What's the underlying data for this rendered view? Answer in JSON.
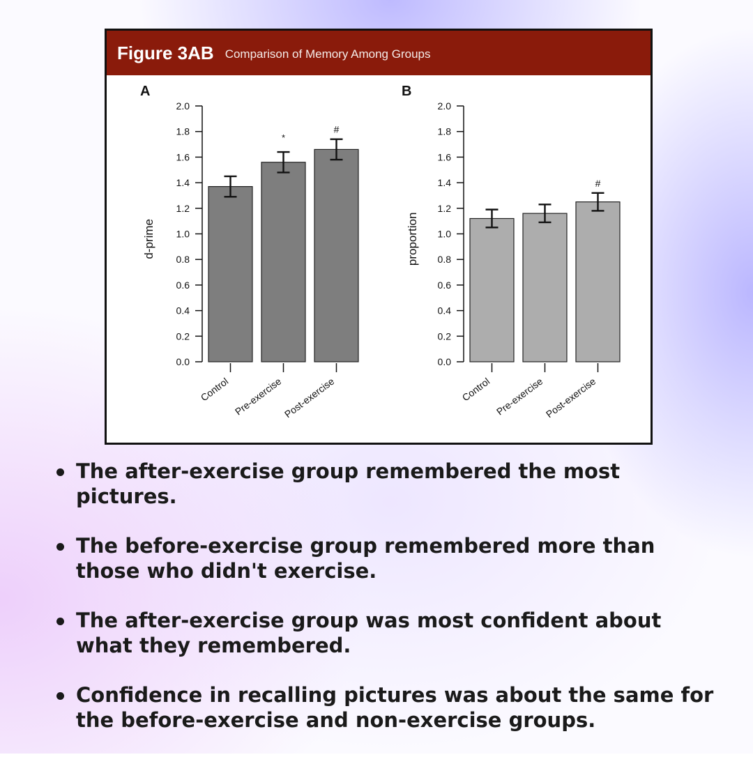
{
  "figure": {
    "title": "Figure 3AB",
    "subtitle": "Comparison of Memory Among Groups"
  },
  "chart_data": [
    {
      "type": "bar",
      "panel": "A",
      "title": "",
      "categories": [
        "Control",
        "Pre-exercise",
        "Post-exercise"
      ],
      "values": [
        1.37,
        1.56,
        1.66
      ],
      "errors": [
        0.08,
        0.08,
        0.08
      ],
      "annotations": [
        "",
        "*",
        "#"
      ],
      "ylabel": "d-prime",
      "xlabel": "",
      "ylim": [
        0,
        2.0
      ],
      "yticks": [
        "0.0",
        "0.2",
        "0.4",
        "0.6",
        "0.8",
        "1.0",
        "1.2",
        "1.4",
        "1.6",
        "1.8",
        "2.0"
      ],
      "bar_color": "#7e7e7e",
      "grid": false
    },
    {
      "type": "bar",
      "panel": "B",
      "title": "",
      "categories": [
        "Control",
        "Pre-exercise",
        "Post-exercise"
      ],
      "values": [
        1.12,
        1.16,
        1.25
      ],
      "errors": [
        0.07,
        0.07,
        0.07
      ],
      "annotations": [
        "",
        "",
        "#"
      ],
      "ylabel": "proportion",
      "xlabel": "",
      "ylim": [
        0,
        2.0
      ],
      "yticks": [
        "0.0",
        "0.2",
        "0.4",
        "0.6",
        "0.8",
        "1.0",
        "1.2",
        "1.4",
        "1.6",
        "1.8",
        "2.0"
      ],
      "bar_color": "#adadad",
      "grid": false
    }
  ],
  "bullets": [
    "The after-exercise group remembered the most pictures.",
    "The before-exercise group remembered more than those who didn't exercise.",
    "The after-exercise group was most confident about what they remembered.",
    "Confidence in recalling pictures was about the same for the before-exercise and non-exercise groups."
  ]
}
